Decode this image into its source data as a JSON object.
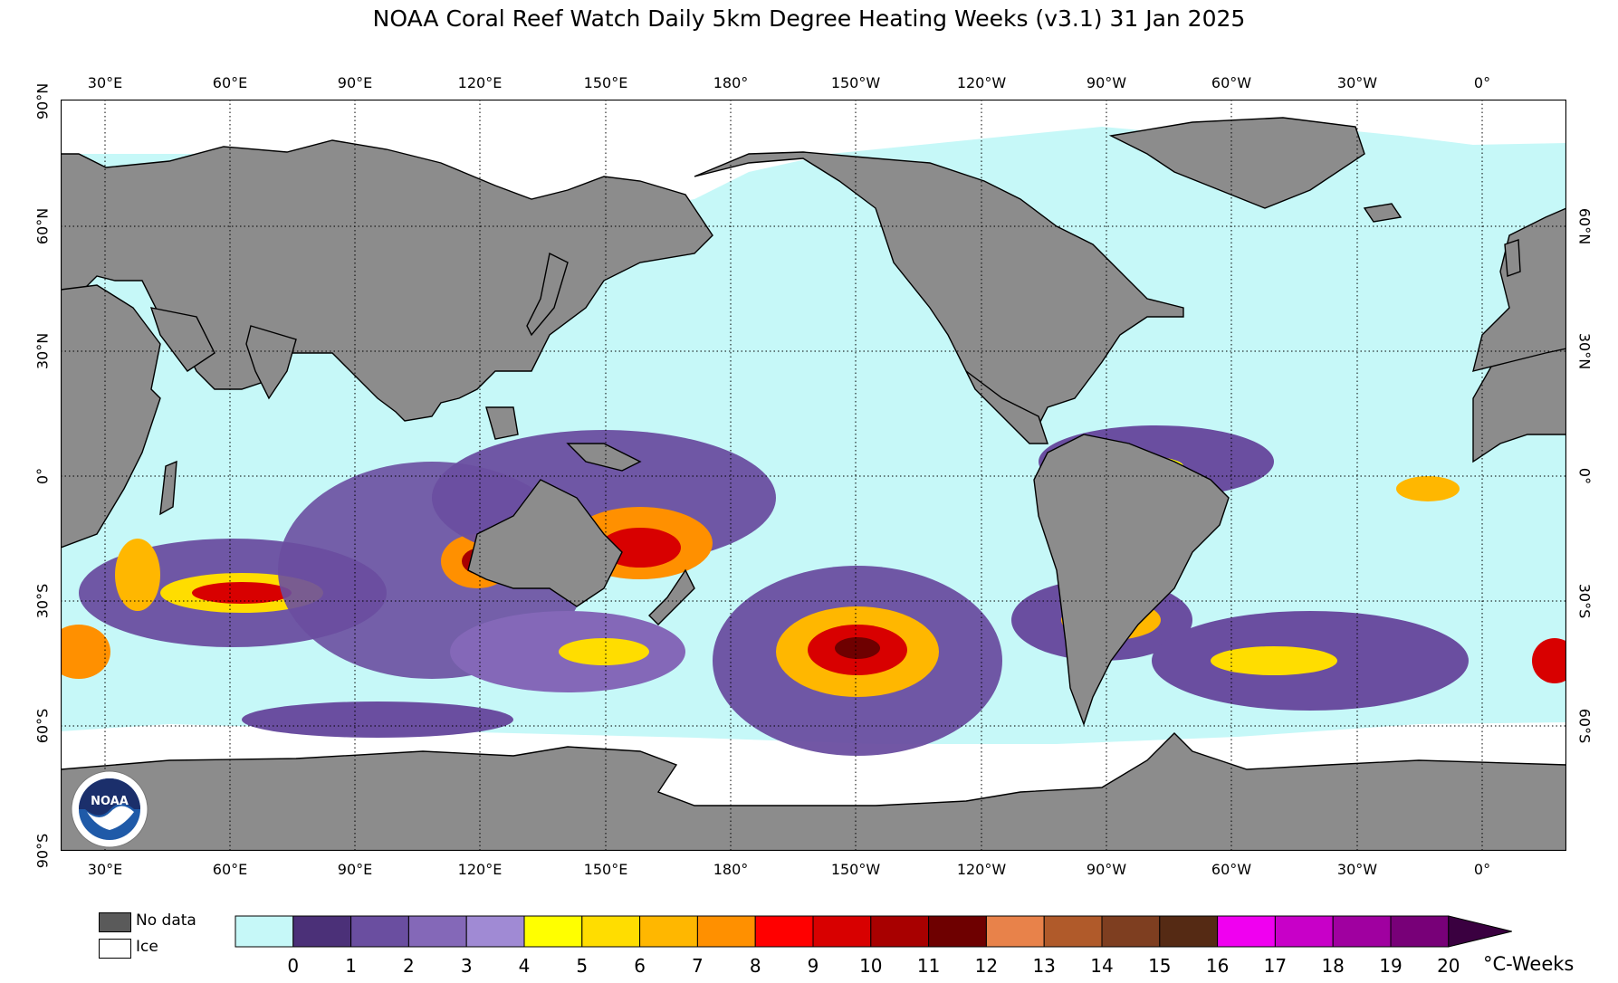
{
  "title": "NOAA Coral Reef Watch Daily 5km Degree Heating Weeks  (v3.1)   31 Jan 2025",
  "lon_labels": [
    "30°E",
    "60°E",
    "90°E",
    "120°E",
    "150°E",
    "180°",
    "150°W",
    "120°W",
    "90°W",
    "60°W",
    "30°W",
    "0°"
  ],
  "lat_labels_left": [
    "90°N",
    "60°N",
    "30°N",
    "0°",
    "30°S",
    "60°S",
    "90°S"
  ],
  "lat_labels_right": [
    "60°N",
    "30°N",
    "0°",
    "30°S",
    "60°S"
  ],
  "legend": {
    "no_data": "No data",
    "ice": "Ice"
  },
  "colors": {
    "ocean": "#c6f8f8",
    "land": "#8c8c8c",
    "ice": "#ffffff",
    "no_data": "#5a5a5a"
  },
  "colorbar": {
    "ticks": [
      "0",
      "1",
      "2",
      "3",
      "4",
      "5",
      "6",
      "7",
      "8",
      "9",
      "10",
      "11",
      "12",
      "13",
      "14",
      "15",
      "16",
      "17",
      "18",
      "19",
      "20"
    ],
    "units": "°C-Weeks",
    "colors": [
      "#c6f8f8",
      "#4b3078",
      "#6a4ea0",
      "#8468b8",
      "#a08ad4",
      "#ffff00",
      "#ffdd00",
      "#ffb700",
      "#ff9000",
      "#ff0000",
      "#d80000",
      "#a80000",
      "#6e0000",
      "#e8824a",
      "#b05a2a",
      "#7e3e20",
      "#552a14",
      "#f000f0",
      "#c800c8",
      "#a000a0",
      "#780078",
      "#3a0040"
    ]
  },
  "logo_text": "NOAA"
}
